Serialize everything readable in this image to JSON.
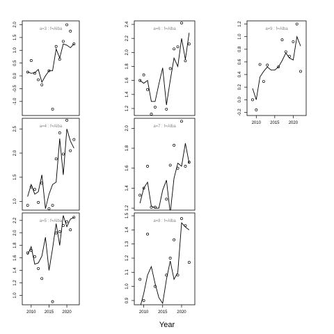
{
  "chart_data": {
    "type": "line",
    "xlabel": "Year",
    "xlim": [
      2007.5,
      2023.5
    ],
    "xticks": [
      2010,
      2015,
      2020
    ],
    "panels": [
      {
        "title": "a=3  :  f=Alba",
        "ylim": [
          -1.55,
          2.15
        ],
        "yticks": [
          -1.0,
          -0.5,
          0.0,
          0.5,
          1.0,
          1.5,
          2.0
        ],
        "ytick_labels": [
          "-1.0",
          "-0.5",
          "0.0",
          "0.5",
          "1.0",
          "1.5",
          "2.0"
        ],
        "show_x_ticks": false,
        "points": {
          "x": [
            2009,
            2010,
            2011,
            2012,
            2013,
            2015,
            2016,
            2017,
            2018,
            2019,
            2020,
            2021,
            2022
          ],
          "y": [
            0.15,
            0.6,
            0.1,
            -0.15,
            -0.35,
            0.2,
            -1.3,
            1.15,
            0.65,
            1.35,
            2.0,
            1.75,
            1.25
          ]
        },
        "line": {
          "x": [
            2009,
            2010,
            2011,
            2012,
            2013,
            2014,
            2015,
            2016,
            2017,
            2018,
            2019,
            2020,
            2021,
            2022
          ],
          "y": [
            0.15,
            0.1,
            0.12,
            0.25,
            -0.25,
            0.0,
            0.2,
            0.2,
            1.05,
            0.7,
            1.25,
            1.2,
            1.1,
            1.25
          ]
        }
      },
      {
        "title": "a=4  :  f=Alba",
        "ylim": [
          0.82,
          2.72
        ],
        "yticks": [
          1.0,
          1.5,
          2.0,
          2.5
        ],
        "ytick_labels": [
          "1.0",
          "1.5",
          "2.0",
          "2.5"
        ],
        "show_x_ticks": false,
        "points": {
          "x": [
            2009,
            2010,
            2011,
            2012,
            2013,
            2015,
            2016,
            2017,
            2018,
            2019,
            2020,
            2021,
            2022
          ],
          "y": [
            0.92,
            1.3,
            1.25,
            0.98,
            1.38,
            0.85,
            0.92,
            1.88,
            2.42,
            1.98,
            2.68,
            2.05,
            2.28
          ]
        },
        "line": {
          "x": [
            2009,
            2010,
            2011,
            2012,
            2013,
            2014,
            2015,
            2016,
            2017,
            2018,
            2019,
            2020,
            2021,
            2022
          ],
          "y": [
            1.1,
            1.35,
            1.15,
            1.2,
            1.55,
            0.85,
            1.15,
            1.35,
            1.4,
            2.3,
            1.55,
            2.5,
            2.25,
            2.1
          ]
        }
      },
      {
        "title": "a=5  :  f=Alba",
        "ylim": [
          0.85,
          2.32
        ],
        "yticks": [
          1.0,
          1.2,
          1.4,
          1.6,
          1.8,
          2.0,
          2.2
        ],
        "ytick_labels": [
          "1.0",
          "1.2",
          "1.4",
          "1.6",
          "1.8",
          "2.0",
          "2.2"
        ],
        "show_x_ticks": true,
        "points": {
          "x": [
            2009,
            2010,
            2011,
            2012,
            2013,
            2016,
            2017,
            2018,
            2019,
            2020,
            2021,
            2022
          ],
          "y": [
            1.68,
            1.72,
            1.62,
            1.43,
            1.27,
            0.9,
            2.0,
            2.02,
            2.12,
            2.18,
            2.05,
            2.25
          ]
        },
        "line": {
          "x": [
            2009,
            2010,
            2011,
            2012,
            2013,
            2014,
            2015,
            2016,
            2017,
            2018,
            2019,
            2020,
            2021,
            2022
          ],
          "y": [
            1.65,
            1.78,
            1.5,
            1.52,
            1.63,
            1.93,
            1.4,
            1.75,
            2.15,
            1.8,
            2.28,
            2.1,
            2.22,
            2.25
          ]
        }
      },
      {
        "title": "a=6  :  f=Alba",
        "ylim": [
          1.1,
          2.45
        ],
        "yticks": [
          1.2,
          1.4,
          1.6,
          1.8,
          2.0,
          2.2,
          2.4
        ],
        "ytick_labels": [
          "1.2",
          "1.4",
          "1.6",
          "1.8",
          "2.0",
          "2.2",
          "2.4"
        ],
        "show_x_ticks": false,
        "points": {
          "x": [
            2009,
            2010,
            2011,
            2012,
            2013,
            2016,
            2017,
            2018,
            2019,
            2020,
            2021,
            2022
          ],
          "y": [
            1.6,
            1.68,
            1.47,
            1.12,
            1.22,
            1.19,
            1.77,
            2.05,
            2.08,
            2.42,
            1.88,
            2.12
          ]
        },
        "line": {
          "x": [
            2009,
            2010,
            2011,
            2012,
            2013,
            2014,
            2015,
            2016,
            2017,
            2018,
            2019,
            2020,
            2021,
            2022
          ],
          "y": [
            1.6,
            1.56,
            1.6,
            1.3,
            1.3,
            1.55,
            1.78,
            1.25,
            1.6,
            1.92,
            1.8,
            2.2,
            1.9,
            2.28
          ]
        }
      },
      {
        "title": "a=7  :  f=Alba",
        "ylim": [
          1.18,
          2.1
        ],
        "yticks": [
          1.2,
          1.4,
          1.6,
          1.8,
          2.0
        ],
        "ytick_labels": [
          "1.2",
          "1.4",
          "1.6",
          "1.8",
          "2.0"
        ],
        "show_x_ticks": false,
        "points": {
          "x": [
            2009,
            2010,
            2011,
            2012,
            2013,
            2016,
            2017,
            2018,
            2019,
            2020,
            2021,
            2022
          ],
          "y": [
            1.33,
            1.4,
            1.62,
            1.21,
            1.21,
            1.29,
            1.63,
            1.83,
            1.6,
            2.07,
            1.62,
            1.66
          ]
        },
        "line": {
          "x": [
            2009,
            2010,
            2011,
            2012,
            2013,
            2014,
            2015,
            2016,
            2017,
            2018,
            2019,
            2020,
            2021,
            2022
          ],
          "y": [
            1.25,
            1.4,
            1.46,
            1.22,
            1.2,
            1.2,
            1.38,
            1.48,
            1.15,
            1.5,
            1.65,
            1.62,
            1.85,
            1.65
          ]
        }
      },
      {
        "title": "a=8  :  f=Alba",
        "ylim": [
          0.87,
          1.52
        ],
        "yticks": [
          0.9,
          1.0,
          1.1,
          1.2,
          1.3,
          1.4,
          1.5
        ],
        "ytick_labels": [
          "0.9",
          "1.0",
          "1.1",
          "1.2",
          "1.3",
          "1.4",
          "1.5"
        ],
        "show_x_ticks": true,
        "points": {
          "x": [
            2009,
            2010,
            2011,
            2012,
            2013,
            2016,
            2017,
            2018,
            2019,
            2020,
            2021,
            2022
          ],
          "y": [
            1.05,
            0.9,
            1.37,
            0.86,
            1.0,
            1.08,
            1.2,
            1.33,
            1.08,
            1.48,
            1.43,
            1.17
          ]
        },
        "line": {
          "x": [
            2009,
            2010,
            2011,
            2012,
            2013,
            2014,
            2015,
            2016,
            2017,
            2018,
            2019,
            2020,
            2021,
            2022
          ],
          "y": [
            0.85,
            0.95,
            1.08,
            1.14,
            1.02,
            0.92,
            0.88,
            1.05,
            1.18,
            1.05,
            1.1,
            1.45,
            1.42,
            1.4
          ]
        }
      },
      {
        "title": "a=9  :  f=Alba",
        "ylim": [
          -0.25,
          1.25
        ],
        "yticks": [
          -0.2,
          0.0,
          0.2,
          0.4,
          0.6,
          0.8,
          1.0,
          1.2
        ],
        "ytick_labels": [
          "-0.2",
          "0.0",
          "0.2",
          "0.4",
          "0.6",
          "0.8",
          "1.0",
          "1.2"
        ],
        "show_x_ticks": true,
        "points": {
          "x": [
            2009,
            2010,
            2011,
            2012,
            2013,
            2016,
            2017,
            2018,
            2019,
            2020,
            2021,
            2022
          ],
          "y": [
            0.0,
            -0.16,
            0.56,
            0.29,
            0.55,
            0.52,
            0.95,
            0.76,
            0.69,
            0.92,
            1.2,
            0.45
          ]
        },
        "line": {
          "x": [
            2009,
            2010,
            2011,
            2012,
            2013,
            2014,
            2015,
            2016,
            2017,
            2018,
            2019,
            2020,
            2021,
            2022
          ],
          "y": [
            0.18,
            0.0,
            0.36,
            0.45,
            0.52,
            0.47,
            0.47,
            0.52,
            0.62,
            0.74,
            0.66,
            0.63,
            1.0,
            0.85
          ]
        }
      }
    ]
  }
}
